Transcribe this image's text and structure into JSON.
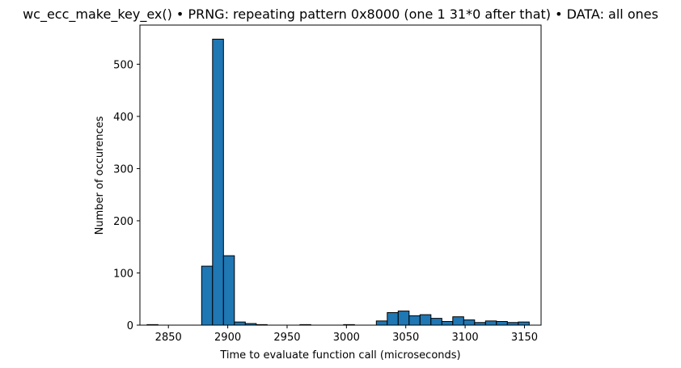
{
  "chart_data": {
    "type": "bar",
    "title": "wc_ecc_make_key_ex() • PRNG: repeating pattern 0x8000 (one 1 31*0 after that) • DATA: all ones",
    "xlabel": "Time to evaluate function call (microseconds)",
    "ylabel": "Number of occurences",
    "xlim": [
      2826,
      3164
    ],
    "ylim": [
      0,
      575
    ],
    "xticks": [
      2850,
      2900,
      2950,
      3000,
      3050,
      3100,
      3150
    ],
    "yticks": [
      0,
      100,
      200,
      300,
      400,
      500
    ],
    "grid": false,
    "bin_width": 9.2,
    "bin_edges_start": 2832,
    "values": [
      1,
      0,
      0,
      0,
      0,
      113,
      548,
      133,
      6,
      3,
      1,
      0,
      0,
      0,
      1,
      0,
      0,
      0,
      1,
      0,
      0,
      8,
      24,
      27,
      18,
      20,
      13,
      7,
      16,
      10,
      5,
      8,
      7,
      5,
      6
    ],
    "color": "#1f77b4",
    "edge_color": "#000000"
  }
}
